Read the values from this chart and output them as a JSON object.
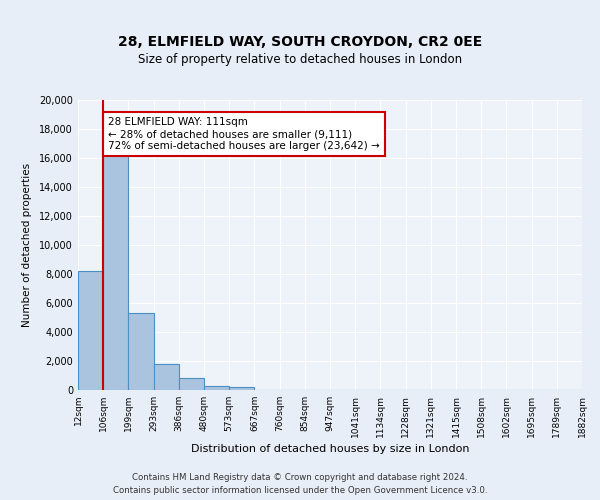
{
  "title": "28, ELMFIELD WAY, SOUTH CROYDON, CR2 0EE",
  "subtitle": "Size of property relative to detached houses in London",
  "xlabel": "Distribution of detached houses by size in London",
  "ylabel": "Number of detached properties",
  "bin_labels": [
    "12sqm",
    "106sqm",
    "199sqm",
    "293sqm",
    "386sqm",
    "480sqm",
    "573sqm",
    "667sqm",
    "760sqm",
    "854sqm",
    "947sqm",
    "1041sqm",
    "1134sqm",
    "1228sqm",
    "1321sqm",
    "1415sqm",
    "1508sqm",
    "1602sqm",
    "1695sqm",
    "1789sqm",
    "1882sqm"
  ],
  "bar_heights": [
    8200,
    16600,
    5300,
    1800,
    800,
    300,
    200,
    0,
    0,
    0,
    0,
    0,
    0,
    0,
    0,
    0,
    0,
    0,
    0,
    0
  ],
  "bar_color": "#aac4e0",
  "bar_edge_color": "#4a90c4",
  "property_line_x": 1,
  "property_value": 111,
  "annotation_title": "28 ELMFIELD WAY: 111sqm",
  "annotation_line1": "← 28% of detached houses are smaller (9,111)",
  "annotation_line2": "72% of semi-detached houses are larger (23,642) →",
  "annotation_box_color": "#ffffff",
  "annotation_box_edge": "#cc0000",
  "red_line_color": "#cc0000",
  "ylim": [
    0,
    20000
  ],
  "yticks": [
    0,
    2000,
    4000,
    6000,
    8000,
    10000,
    12000,
    14000,
    16000,
    18000,
    20000
  ],
  "footer1": "Contains HM Land Registry data © Crown copyright and database right 2024.",
  "footer2": "Contains public sector information licensed under the Open Government Licence v3.0.",
  "bg_color": "#e8eef7",
  "plot_bg_color": "#eef2f9"
}
